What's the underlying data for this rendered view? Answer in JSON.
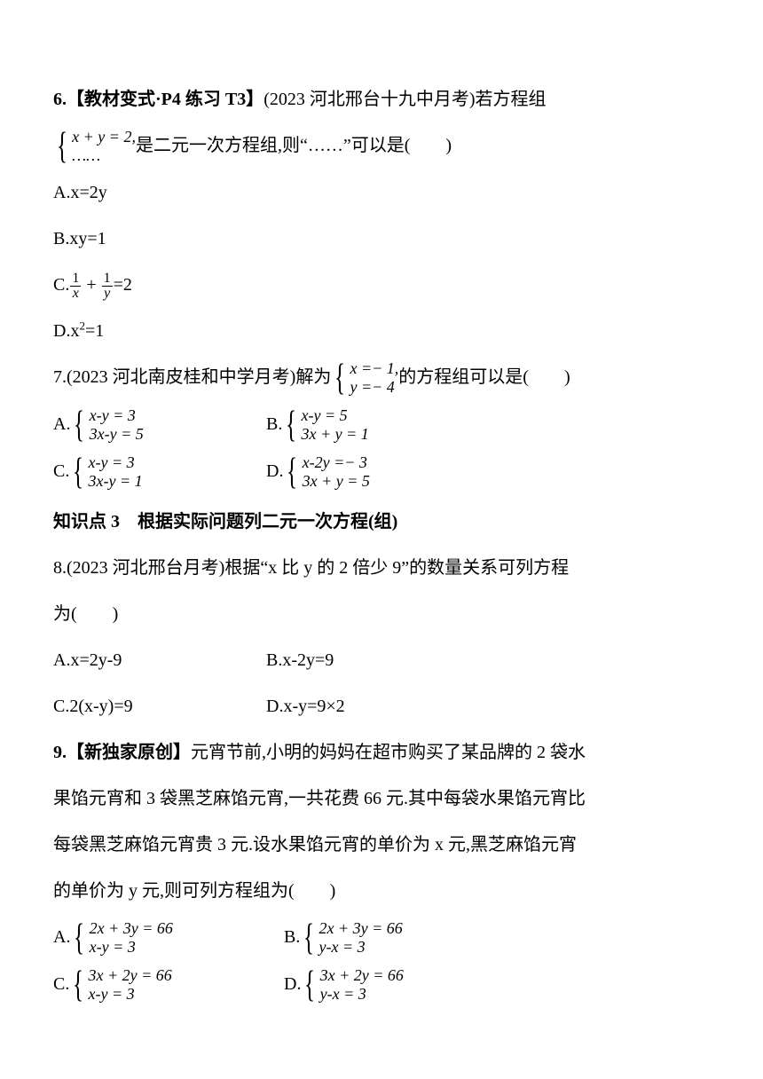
{
  "q6": {
    "lead_bold": "6.【教材变式·P4 练习 T3】",
    "lead_rest": "(2023 河北邢台十九中月考)若方程组",
    "brace_top": "x + y = 2,",
    "brace_bot": "……",
    "after_brace": "是二元一次方程组,则“……”可以是(  )",
    "optA": "A.x=2y",
    "optB": "B.xy=1",
    "optC_pre": "C.",
    "optC_f1n": "1",
    "optC_f1d": "x",
    "optC_plus": " + ",
    "optC_f2n": "1",
    "optC_f2d": "y",
    "optC_post": "=2",
    "optD_pre": "D.x",
    "optD_post": "=1"
  },
  "q7": {
    "lead": "7.(2023 河北南皮桂和中学月考)解为",
    "brace_top": "x =− 1,",
    "brace_bot": "y =− 4",
    "after_brace": "的方程组可以是(  )",
    "A_l": "A.",
    "A_t": "x-y = 3",
    "A_b": "3x-y = 5",
    "B_l": "B.",
    "B_t": "x-y = 5",
    "B_b": "3x + y = 1",
    "C_l": "C.",
    "C_t": "x-y = 3",
    "C_b": "3x-y = 1",
    "D_l": "D.",
    "D_t": "x-2y =− 3",
    "D_b": "3x + y = 5"
  },
  "kp3": "知识点 3 根据实际问题列二元一次方程(组)",
  "q8": {
    "line1": "8.(2023 河北邢台月考)根据“x 比 y 的 2 倍少 9”的数量关系可列方程",
    "line2": "为(  )",
    "A": "A.x=2y-9",
    "B": "B.x-2y=9",
    "C": "C.2(x-y)=9",
    "D": "D.x-y=9×2"
  },
  "q9": {
    "lead_bold": "9.【新独家原创】",
    "l1": "元宵节前,小明的妈妈在超市购买了某品牌的 2 袋水",
    "l2": "果馅元宵和 3 袋黑芝麻馅元宵,一共花费 66 元.其中每袋水果馅元宵比",
    "l3": "每袋黑芝麻馅元宵贵 3 元.设水果馅元宵的单价为 x 元,黑芝麻馅元宵",
    "l4": "的单价为 y 元,则可列方程组为(  )",
    "A_l": "A.",
    "A_t": "2x + 3y = 66",
    "A_b": "x-y = 3",
    "B_l": "B.",
    "B_t": "2x + 3y = 66",
    "B_b": "y-x = 3",
    "C_l": "C.",
    "C_t": "3x + 2y = 66",
    "C_b": "x-y = 3",
    "D_l": "D.",
    "D_t": "3x + 2y = 66",
    "D_b": "y-x = 3"
  }
}
